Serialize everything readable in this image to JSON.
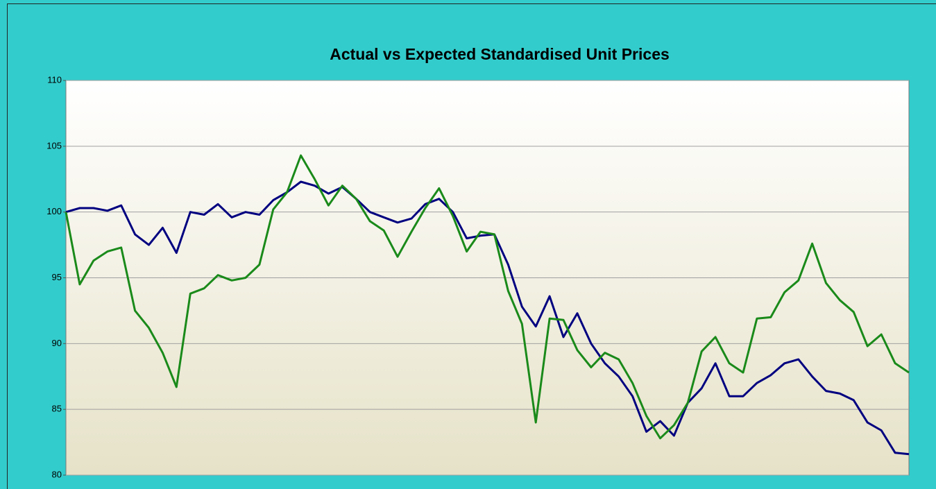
{
  "chart_data": {
    "type": "line",
    "title": "Actual vs Expected Standardised Unit Prices",
    "ylim": [
      80,
      110
    ],
    "yticks": [
      80,
      85,
      90,
      95,
      100,
      105,
      110
    ],
    "grid": true,
    "series": [
      {
        "name": null,
        "color": "#000080",
        "values": [
          100,
          100.3,
          100.3,
          100.1,
          100.5,
          98.3,
          97.5,
          98.8,
          96.9,
          100,
          99.8,
          100.6,
          99.6,
          100,
          99.8,
          100.9,
          101.5,
          102.3,
          102,
          101.4,
          101.9,
          101,
          100,
          99.6,
          99.2,
          99.5,
          100.6,
          101,
          100,
          98,
          98.2,
          98.3,
          96,
          92.8,
          91.3,
          93.6,
          90.5,
          92.3,
          90,
          88.5,
          87.5,
          86,
          83.3,
          84.1,
          83,
          85.5,
          86.6,
          88.5,
          86,
          86,
          87,
          87.6,
          88.5,
          88.8,
          87.5,
          86.4,
          86.2,
          85.7,
          84,
          83.4,
          81.7,
          81.6
        ]
      },
      {
        "name": null,
        "color": "#1a8a1a",
        "values": [
          100,
          94.5,
          96.3,
          97,
          97.3,
          92.5,
          91.2,
          89.3,
          86.7,
          93.8,
          94.2,
          95.2,
          94.8,
          95,
          96,
          100.2,
          101.5,
          104.3,
          102.5,
          100.5,
          102,
          101,
          99.3,
          98.6,
          96.6,
          98.5,
          100.3,
          101.8,
          99.7,
          97,
          98.5,
          98.3,
          94,
          91.5,
          84,
          91.9,
          91.8,
          89.5,
          88.2,
          89.3,
          88.8,
          87,
          84.5,
          82.8,
          83.8,
          85.5,
          89.4,
          90.5,
          88.5,
          87.8,
          91.9,
          92,
          93.9,
          94.8,
          97.6,
          94.6,
          93.3,
          92.4,
          89.8,
          90.7,
          88.5,
          87.8
        ]
      }
    ]
  }
}
